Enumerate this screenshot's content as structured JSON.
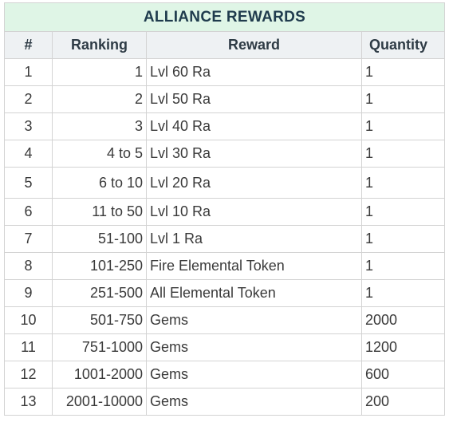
{
  "title": "ALLIANCE REWARDS",
  "headers": {
    "number": "#",
    "ranking": "Ranking",
    "reward": "Reward",
    "quantity": "Quantity"
  },
  "rows": [
    {
      "number": "1",
      "ranking": "1",
      "reward": "Lvl 60 Ra",
      "quantity": "1"
    },
    {
      "number": "2",
      "ranking": "2",
      "reward": "Lvl 50 Ra",
      "quantity": "1"
    },
    {
      "number": "3",
      "ranking": "3",
      "reward": "Lvl 40 Ra",
      "quantity": "1"
    },
    {
      "number": "4",
      "ranking": "4 to 5",
      "reward": "Lvl 30 Ra",
      "quantity": "1"
    },
    {
      "number": "5",
      "ranking": "6 to 10",
      "reward": "Lvl 20 Ra",
      "quantity": "1"
    },
    {
      "number": "6",
      "ranking": "11 to 50",
      "reward": "Lvl 10 Ra",
      "quantity": "1"
    },
    {
      "number": "7",
      "ranking": "51-100",
      "reward": "Lvl 1 Ra",
      "quantity": "1"
    },
    {
      "number": "8",
      "ranking": "101-250",
      "reward": "Fire Elemental Token",
      "quantity": "1"
    },
    {
      "number": "9",
      "ranking": "251-500",
      "reward": "All Elemental Token",
      "quantity": "1"
    },
    {
      "number": "10",
      "ranking": "501-750",
      "reward": "Gems",
      "quantity": "2000"
    },
    {
      "number": "11",
      "ranking": "751-1000",
      "reward": "Gems",
      "quantity": "1200"
    },
    {
      "number": "12",
      "ranking": "1001-2000",
      "reward": "Gems",
      "quantity": "600"
    },
    {
      "number": "13",
      "ranking": "2001-10000",
      "reward": "Gems",
      "quantity": "200"
    }
  ],
  "colors": {
    "title_background": "#dff5e6",
    "header_background": "#eef1f3",
    "border": "#d3d3d3"
  }
}
